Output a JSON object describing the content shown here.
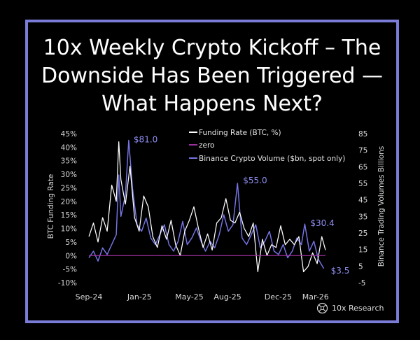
{
  "title": "10x Weekly Crypto Kickoff – The Downside Has Been Triggered — What Happens Next?",
  "brand": {
    "name": "10x Research",
    "icon": "10x-research-logo-icon"
  },
  "colors": {
    "background": "#000000",
    "frame": "#7b7bd8",
    "funding_rate": "#ffffff",
    "volume": "#7575e6",
    "zero_line": "#9b2f9b",
    "label": "#d8d8d8",
    "accent_label": "#8f8ff4"
  },
  "chart_data": {
    "type": "line",
    "xlabel": "",
    "ylabel_left": "BTC Funding Rate",
    "ylabel_right": "Binance Trading  Volumes Billions",
    "x_ticks": [
      "Sep-24",
      "Jan-25",
      "May-25",
      "Aug-25",
      "Dec-25",
      "Mar-26"
    ],
    "x_tick_dates": [
      "2024-09-01",
      "2025-01-01",
      "2025-05-01",
      "2025-08-01",
      "2025-12-01",
      "2026-03-01"
    ],
    "x_range": [
      "2024-09-01",
      "2026-03-25"
    ],
    "left_axis": {
      "ticks": [
        -10,
        -5,
        0,
        5,
        10,
        15,
        20,
        25,
        30,
        35,
        40,
        45
      ],
      "tick_labels": [
        "-10%",
        "-5%",
        "0%",
        "5%",
        "10%",
        "15%",
        "20%",
        "25%",
        "30%",
        "35%",
        "40%",
        "45%"
      ],
      "range": [
        -10,
        45
      ]
    },
    "right_axis": {
      "ticks": [
        -5,
        5,
        15,
        25,
        35,
        45,
        55,
        65,
        75,
        85
      ],
      "tick_labels": [
        "-5",
        "5",
        "15",
        "25",
        "35",
        "45",
        "55",
        "65",
        "75",
        "85"
      ],
      "range": [
        -5,
        85
      ]
    },
    "legend": {
      "placement": "top-right",
      "items": [
        {
          "label": "Funding Rate (BTC, %)",
          "series": "funding_rate"
        },
        {
          "label": "zero",
          "series": "zero"
        },
        {
          "label": "Binance Crypto Volume ($bn, spot only)",
          "series": "volume"
        }
      ]
    },
    "annotations": [
      {
        "text": "$81.0",
        "x": "2024-12-06",
        "y_right": 81.0
      },
      {
        "text": "$55.0",
        "x": "2025-08-25",
        "y_right": 55.0
      },
      {
        "text": "$30.4",
        "x": "2026-02-03",
        "y_right": 30.4
      },
      {
        "text": "$3.5",
        "x": "2026-03-21",
        "y_right": 3.5
      }
    ],
    "series": [
      {
        "name": "Funding Rate (BTC, %)",
        "axis": "left",
        "points": [
          [
            "2024-09-01",
            7
          ],
          [
            "2024-09-12",
            12
          ],
          [
            "2024-09-23",
            5
          ],
          [
            "2024-10-04",
            14
          ],
          [
            "2024-10-15",
            9
          ],
          [
            "2024-10-26",
            26
          ],
          [
            "2024-11-06",
            20
          ],
          [
            "2024-11-12",
            42
          ],
          [
            "2024-11-17",
            28
          ],
          [
            "2024-11-28",
            19
          ],
          [
            "2024-12-09",
            33
          ],
          [
            "2024-12-20",
            14
          ],
          [
            "2024-12-31",
            9
          ],
          [
            "2025-01-11",
            22
          ],
          [
            "2025-01-22",
            18
          ],
          [
            "2025-02-02",
            7
          ],
          [
            "2025-02-13",
            3
          ],
          [
            "2025-02-24",
            11
          ],
          [
            "2025-03-07",
            6
          ],
          [
            "2025-03-18",
            13
          ],
          [
            "2025-03-29",
            4
          ],
          [
            "2025-04-09",
            0
          ],
          [
            "2025-04-20",
            9
          ],
          [
            "2025-05-01",
            13
          ],
          [
            "2025-05-12",
            18
          ],
          [
            "2025-05-23",
            10
          ],
          [
            "2025-06-03",
            3
          ],
          [
            "2025-06-14",
            8
          ],
          [
            "2025-06-25",
            2
          ],
          [
            "2025-07-06",
            12
          ],
          [
            "2025-07-17",
            14
          ],
          [
            "2025-07-28",
            21
          ],
          [
            "2025-08-08",
            13
          ],
          [
            "2025-08-19",
            12
          ],
          [
            "2025-08-30",
            16
          ],
          [
            "2025-09-10",
            10
          ],
          [
            "2025-09-21",
            7
          ],
          [
            "2025-10-02",
            12
          ],
          [
            "2025-10-13",
            -6
          ],
          [
            "2025-10-24",
            6
          ],
          [
            "2025-11-04",
            0
          ],
          [
            "2025-11-15",
            4
          ],
          [
            "2025-11-26",
            3
          ],
          [
            "2025-12-07",
            11
          ],
          [
            "2025-12-18",
            4
          ],
          [
            "2025-12-29",
            6
          ],
          [
            "2026-01-09",
            4
          ],
          [
            "2026-01-20",
            7
          ],
          [
            "2026-01-31",
            -6
          ],
          [
            "2026-02-11",
            -4
          ],
          [
            "2026-02-22",
            1
          ],
          [
            "2026-03-05",
            -3
          ],
          [
            "2026-03-16",
            7
          ],
          [
            "2026-03-25",
            2
          ]
        ]
      },
      {
        "name": "zero",
        "axis": "left",
        "points": [
          [
            "2024-09-01",
            0
          ],
          [
            "2026-03-25",
            0
          ]
        ]
      },
      {
        "name": "Binance Crypto Volume ($bn, spot only)",
        "axis": "right",
        "points": [
          [
            "2024-09-01",
            10
          ],
          [
            "2024-09-12",
            14
          ],
          [
            "2024-09-23",
            8
          ],
          [
            "2024-10-04",
            16
          ],
          [
            "2024-10-15",
            12
          ],
          [
            "2024-10-26",
            18
          ],
          [
            "2024-11-06",
            24
          ],
          [
            "2024-11-12",
            60
          ],
          [
            "2024-11-17",
            35
          ],
          [
            "2024-11-28",
            48
          ],
          [
            "2024-12-06",
            81
          ],
          [
            "2024-12-15",
            52
          ],
          [
            "2024-12-26",
            30
          ],
          [
            "2025-01-06",
            26
          ],
          [
            "2025-01-17",
            34
          ],
          [
            "2025-01-28",
            22
          ],
          [
            "2025-02-08",
            18
          ],
          [
            "2025-02-19",
            24
          ],
          [
            "2025-03-02",
            30
          ],
          [
            "2025-03-13",
            18
          ],
          [
            "2025-03-24",
            14
          ],
          [
            "2025-04-04",
            20
          ],
          [
            "2025-04-15",
            32
          ],
          [
            "2025-04-26",
            18
          ],
          [
            "2025-05-07",
            22
          ],
          [
            "2025-05-18",
            28
          ],
          [
            "2025-05-29",
            20
          ],
          [
            "2025-06-09",
            14
          ],
          [
            "2025-06-20",
            20
          ],
          [
            "2025-07-01",
            16
          ],
          [
            "2025-07-12",
            24
          ],
          [
            "2025-07-23",
            36
          ],
          [
            "2025-08-03",
            26
          ],
          [
            "2025-08-14",
            30
          ],
          [
            "2025-08-25",
            55
          ],
          [
            "2025-09-05",
            22
          ],
          [
            "2025-09-16",
            18
          ],
          [
            "2025-09-27",
            24
          ],
          [
            "2025-10-08",
            30
          ],
          [
            "2025-10-19",
            16
          ],
          [
            "2025-10-30",
            20
          ],
          [
            "2025-11-10",
            26
          ],
          [
            "2025-11-21",
            14
          ],
          [
            "2025-12-02",
            12
          ],
          [
            "2025-12-13",
            18
          ],
          [
            "2025-12-24",
            10
          ],
          [
            "2026-01-04",
            14
          ],
          [
            "2026-01-15",
            22
          ],
          [
            "2026-01-26",
            18
          ],
          [
            "2026-02-03",
            30.4
          ],
          [
            "2026-02-14",
            14
          ],
          [
            "2026-02-25",
            20
          ],
          [
            "2026-03-08",
            9
          ],
          [
            "2026-03-21",
            3.5
          ]
        ]
      }
    ]
  }
}
